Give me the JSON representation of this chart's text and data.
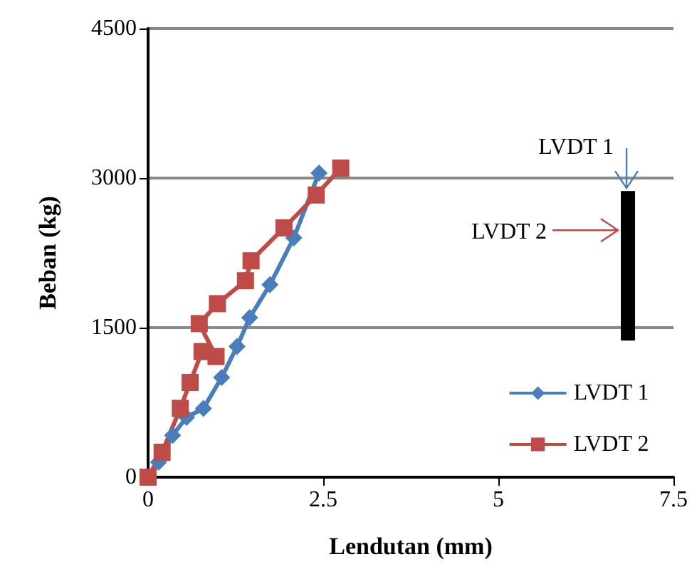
{
  "chart_data": {
    "type": "line",
    "xlabel": "Lendutan (mm)",
    "ylabel": "Beban (kg)",
    "xlim": [
      0,
      7.5
    ],
    "xticks": [
      0,
      2.5,
      5,
      7.5
    ],
    "ylim": [
      0,
      4500
    ],
    "yticks": [
      0,
      1500,
      3000,
      4500
    ],
    "grid": "y",
    "legend": "bottom right",
    "line_style": "solid",
    "series": [
      {
        "name": "LVDT 1",
        "color": "#4a7ebb",
        "marker": "diamond",
        "x": [
          0,
          0.15,
          0.35,
          0.55,
          0.79,
          1.05,
          1.27,
          1.45,
          1.74,
          2.08,
          2.44
        ],
        "values": [
          0,
          150,
          420,
          600,
          690,
          1000,
          1310,
          1600,
          1930,
          2400,
          3050
        ]
      },
      {
        "name": "LVDT 2",
        "color": "#be4b48",
        "marker": "square",
        "x": [
          0,
          0.2,
          0.46,
          0.6,
          0.77,
          0.97,
          0.73,
          0.99,
          1.39,
          1.47,
          1.94,
          2.4,
          2.75
        ],
        "values": [
          0,
          250,
          690,
          950,
          1260,
          1210,
          1540,
          1740,
          1970,
          2170,
          2500,
          2830,
          3100
        ]
      }
    ],
    "annotations": [
      "LVDT 1",
      "LVDT 2"
    ]
  }
}
